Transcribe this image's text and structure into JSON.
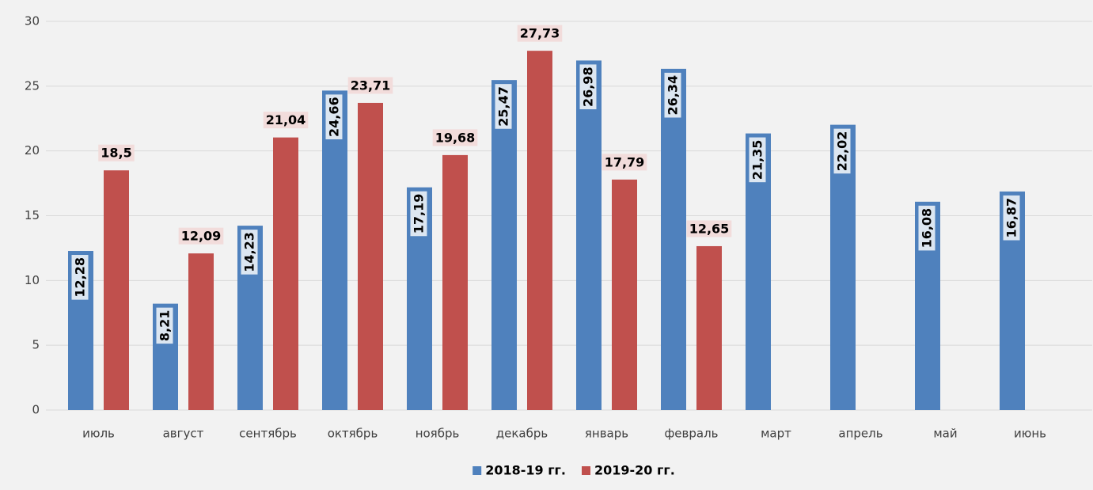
{
  "chart_data": {
    "type": "bar",
    "categories": [
      "июль",
      "август",
      "сентябрь",
      "октябрь",
      "ноябрь",
      "декабрь",
      "январь",
      "февраль",
      "март",
      "апрель",
      "май",
      "июнь"
    ],
    "series": [
      {
        "name": "2018-19 гг.",
        "color": "#4f81bd",
        "values": [
          12.28,
          8.21,
          14.23,
          24.66,
          17.19,
          25.47,
          26.98,
          26.34,
          21.35,
          22.02,
          16.08,
          16.87
        ],
        "value_labels": [
          "12,28",
          "8,21",
          "14,23",
          "24,66",
          "17,19",
          "25,47",
          "26,98",
          "26,34",
          "21,35",
          "22,02",
          "16,08",
          "16,87"
        ]
      },
      {
        "name": "2019-20 гг.",
        "color": "#c0504d",
        "values": [
          18.5,
          12.09,
          21.04,
          23.71,
          19.68,
          27.73,
          17.79,
          12.65,
          null,
          null,
          null,
          null
        ],
        "value_labels": [
          "18,5",
          "12,09",
          "21,04",
          "23,71",
          "19,68",
          "27,73",
          "17,79",
          "12,65",
          null,
          null,
          null,
          null
        ]
      }
    ],
    "ylim": [
      0,
      30
    ],
    "yticks": [
      0,
      5,
      10,
      15,
      20,
      25,
      30
    ],
    "grid": true,
    "legend": "bottom"
  }
}
